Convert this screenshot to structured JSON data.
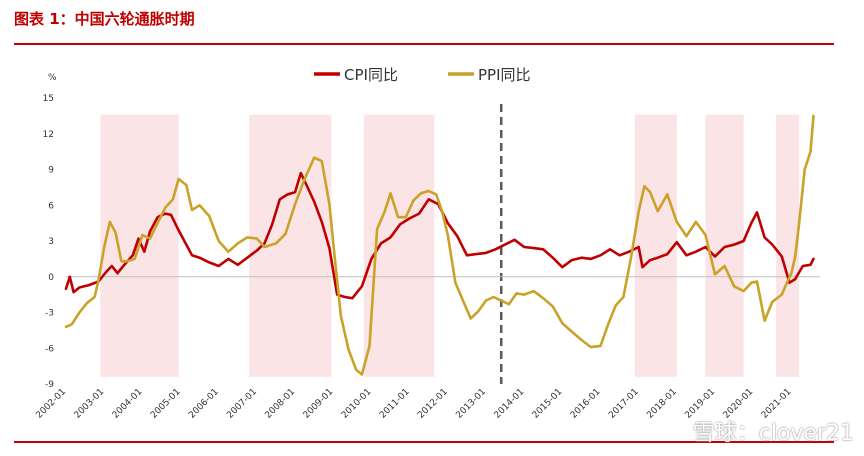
{
  "header": {
    "title": "图表 1：中国六轮通胀时期"
  },
  "watermark": {
    "text": "雪球：clover21"
  },
  "colors": {
    "cpi": "#c00000",
    "ppi": "#c9a227",
    "shade": "#fbe4e6",
    "rule": "#c00000",
    "divider": "#595959"
  },
  "chart_data": {
    "type": "line",
    "ylabel": "%",
    "ylim": [
      -9,
      15
    ],
    "yticks": [
      -9,
      -6,
      -3,
      0,
      3,
      6,
      9,
      12,
      15
    ],
    "xlim": [
      2002.0,
      2021.75
    ],
    "xticks": [
      "2002-01",
      "2003-01",
      "2004-01",
      "2005-01",
      "2006-01",
      "2007-01",
      "2008-01",
      "2009-01",
      "2010-01",
      "2011-01",
      "2012-01",
      "2013-01",
      "2014-01",
      "2015-01",
      "2016-01",
      "2017-01",
      "2018-01",
      "2019-01",
      "2020-01",
      "2021-01"
    ],
    "divider_x": 2013.4,
    "shaded_periods": [
      [
        2002.9,
        2004.95
      ],
      [
        2006.8,
        2008.95
      ],
      [
        2009.8,
        2011.65
      ],
      [
        2016.9,
        2018.0
      ],
      [
        2018.75,
        2019.75
      ],
      [
        2020.6,
        2021.2
      ]
    ],
    "legend": {
      "position": "top-center"
    },
    "series": [
      {
        "name": "CPI同比",
        "x": [
          2002.0,
          2002.1,
          2002.2,
          2002.35,
          2002.6,
          2002.85,
          2003.05,
          2003.2,
          2003.35,
          2003.5,
          2003.75,
          2003.9,
          2004.05,
          2004.2,
          2004.4,
          2004.6,
          2004.75,
          2004.95,
          2005.15,
          2005.3,
          2005.5,
          2005.75,
          2006.0,
          2006.25,
          2006.5,
          2006.75,
          2007.0,
          2007.2,
          2007.4,
          2007.6,
          2007.8,
          2008.0,
          2008.15,
          2008.3,
          2008.5,
          2008.7,
          2008.9,
          2009.1,
          2009.3,
          2009.5,
          2009.75,
          2010.0,
          2010.25,
          2010.5,
          2010.75,
          2011.0,
          2011.25,
          2011.5,
          2011.75,
          2012.0,
          2012.25,
          2012.5,
          2012.75,
          2013.0,
          2013.25,
          2013.5,
          2013.75,
          2014.0,
          2014.25,
          2014.5,
          2014.75,
          2015.0,
          2015.25,
          2015.5,
          2015.75,
          2016.0,
          2016.25,
          2016.5,
          2016.75,
          2017.0,
          2017.1,
          2017.3,
          2017.5,
          2017.75,
          2018.0,
          2018.25,
          2018.5,
          2018.75,
          2019.0,
          2019.25,
          2019.5,
          2019.75,
          2019.95,
          2020.1,
          2020.3,
          2020.5,
          2020.75,
          2020.95,
          2021.1,
          2021.3,
          2021.5,
          2021.58
        ],
        "values": [
          -1.0,
          0.0,
          -1.3,
          -0.9,
          -0.7,
          -0.4,
          0.4,
          0.9,
          0.3,
          0.9,
          1.8,
          3.2,
          2.1,
          3.8,
          5.0,
          5.3,
          5.2,
          3.9,
          2.7,
          1.8,
          1.6,
          1.2,
          0.9,
          1.5,
          1.0,
          1.6,
          2.2,
          2.8,
          4.4,
          6.5,
          6.9,
          7.1,
          8.7,
          7.7,
          6.3,
          4.6,
          2.4,
          -1.5,
          -1.7,
          -1.8,
          -0.8,
          1.5,
          2.8,
          3.3,
          4.4,
          4.9,
          5.3,
          6.5,
          6.1,
          4.5,
          3.4,
          1.8,
          1.9,
          2.0,
          2.3,
          2.7,
          3.1,
          2.5,
          2.4,
          2.3,
          1.6,
          0.8,
          1.4,
          1.6,
          1.5,
          1.8,
          2.3,
          1.8,
          2.1,
          2.5,
          0.8,
          1.4,
          1.6,
          1.9,
          2.9,
          1.8,
          2.1,
          2.5,
          1.7,
          2.5,
          2.7,
          3.0,
          4.5,
          5.4,
          3.3,
          2.7,
          1.7,
          -0.5,
          -0.2,
          0.9,
          1.0,
          1.5
        ]
      },
      {
        "name": "PPI同比",
        "x": [
          2002.0,
          2002.15,
          2002.35,
          2002.55,
          2002.75,
          2002.85,
          2003.0,
          2003.15,
          2003.3,
          2003.45,
          2003.6,
          2003.8,
          2004.0,
          2004.2,
          2004.4,
          2004.6,
          2004.8,
          2004.95,
          2005.15,
          2005.3,
          2005.5,
          2005.75,
          2006.0,
          2006.25,
          2006.5,
          2006.75,
          2007.0,
          2007.2,
          2007.5,
          2007.75,
          2008.0,
          2008.25,
          2008.5,
          2008.7,
          2008.9,
          2009.05,
          2009.2,
          2009.4,
          2009.6,
          2009.75,
          2009.95,
          2010.15,
          2010.35,
          2010.5,
          2010.7,
          2010.9,
          2011.1,
          2011.3,
          2011.5,
          2011.7,
          2011.85,
          2012.0,
          2012.2,
          2012.4,
          2012.6,
          2012.8,
          2013.0,
          2013.2,
          2013.4,
          2013.6,
          2013.8,
          2014.0,
          2014.25,
          2014.5,
          2014.75,
          2015.0,
          2015.25,
          2015.5,
          2015.75,
          2016.0,
          2016.2,
          2016.4,
          2016.6,
          2016.8,
          2017.0,
          2017.15,
          2017.3,
          2017.5,
          2017.75,
          2018.0,
          2018.25,
          2018.5,
          2018.75,
          2019.0,
          2019.25,
          2019.5,
          2019.75,
          2019.95,
          2020.1,
          2020.3,
          2020.5,
          2020.75,
          2020.9,
          2021.0,
          2021.1,
          2021.2,
          2021.35,
          2021.5,
          2021.58
        ],
        "values": [
          -4.2,
          -4.0,
          -3.0,
          -2.2,
          -1.7,
          -0.3,
          2.5,
          4.6,
          3.7,
          1.3,
          1.3,
          1.5,
          3.5,
          3.2,
          4.5,
          5.8,
          6.5,
          8.2,
          7.7,
          5.6,
          6.0,
          5.1,
          3.0,
          2.1,
          2.8,
          3.3,
          3.2,
          2.5,
          2.8,
          3.6,
          6.1,
          8.2,
          10.0,
          9.7,
          6.1,
          1.3,
          -3.3,
          -6.1,
          -7.8,
          -8.2,
          -5.8,
          4.0,
          5.5,
          7.0,
          5.0,
          5.0,
          6.4,
          7.0,
          7.2,
          6.9,
          5.5,
          3.5,
          -0.5,
          -2.0,
          -3.5,
          -2.9,
          -2.0,
          -1.7,
          -2.0,
          -2.3,
          -1.4,
          -1.5,
          -1.2,
          -1.8,
          -2.5,
          -3.9,
          -4.6,
          -5.3,
          -5.9,
          -5.8,
          -4.0,
          -2.4,
          -1.7,
          1.6,
          5.5,
          7.6,
          7.1,
          5.5,
          6.9,
          4.6,
          3.4,
          4.6,
          3.5,
          0.2,
          0.9,
          -0.8,
          -1.2,
          -0.5,
          -0.4,
          -3.7,
          -2.1,
          -1.5,
          -0.4,
          0.3,
          1.7,
          4.4,
          9.0,
          10.5,
          13.5
        ]
      }
    ]
  }
}
